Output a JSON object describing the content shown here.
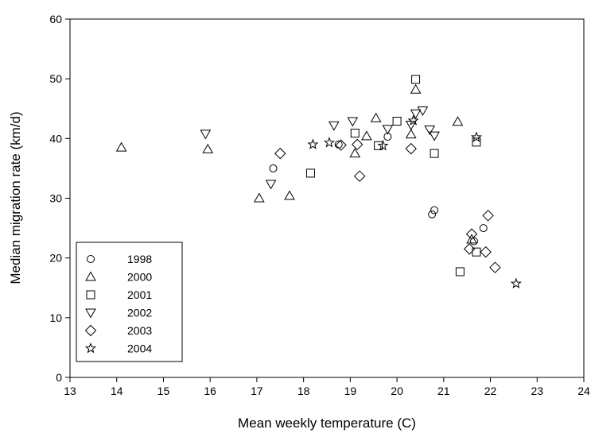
{
  "chart_data": {
    "type": "scatter",
    "title": "",
    "xlabel": "Mean weekly temperature (C)",
    "ylabel": "Median migration rate (km/d)",
    "xlim": [
      13,
      24
    ],
    "ylim": [
      0,
      60
    ],
    "x_ticks": [
      13,
      14,
      15,
      16,
      17,
      18,
      19,
      20,
      21,
      22,
      23,
      24
    ],
    "y_ticks": [
      0,
      10,
      20,
      30,
      40,
      50,
      60
    ],
    "grid": false,
    "legend_position": "bottom-left",
    "series": [
      {
        "name": "1998",
        "marker": "circle",
        "points": [
          [
            17.35,
            35.0
          ],
          [
            18.75,
            39.0
          ],
          [
            19.8,
            40.3
          ],
          [
            20.75,
            27.3
          ],
          [
            20.8,
            28.0
          ],
          [
            21.85,
            25.0
          ],
          [
            21.65,
            22.8
          ]
        ]
      },
      {
        "name": "2000",
        "marker": "triangle-up",
        "points": [
          [
            14.1,
            38.5
          ],
          [
            15.95,
            38.2
          ],
          [
            17.05,
            30.0
          ],
          [
            17.7,
            30.4
          ],
          [
            19.1,
            37.5
          ],
          [
            19.35,
            40.4
          ],
          [
            19.55,
            43.4
          ],
          [
            20.3,
            40.7
          ],
          [
            20.4,
            48.2
          ],
          [
            21.3,
            42.8
          ],
          [
            21.6,
            23.1
          ]
        ]
      },
      {
        "name": "2001",
        "marker": "square",
        "points": [
          [
            18.15,
            34.2
          ],
          [
            19.1,
            40.9
          ],
          [
            19.6,
            38.8
          ],
          [
            20.0,
            42.9
          ],
          [
            20.4,
            49.9
          ],
          [
            20.8,
            37.5
          ],
          [
            21.35,
            17.7
          ],
          [
            21.7,
            21.0
          ],
          [
            21.7,
            39.4
          ]
        ]
      },
      {
        "name": "2002",
        "marker": "triangle-down",
        "points": [
          [
            15.9,
            40.8
          ],
          [
            17.3,
            32.4
          ],
          [
            18.65,
            42.2
          ],
          [
            19.05,
            42.9
          ],
          [
            19.8,
            41.6
          ],
          [
            20.3,
            42.3
          ],
          [
            20.4,
            44.2
          ],
          [
            20.55,
            44.7
          ],
          [
            20.7,
            41.5
          ],
          [
            20.8,
            40.5
          ]
        ]
      },
      {
        "name": "2003",
        "marker": "diamond",
        "points": [
          [
            17.5,
            37.5
          ],
          [
            18.8,
            38.9
          ],
          [
            19.15,
            39.0
          ],
          [
            19.2,
            33.7
          ],
          [
            20.3,
            38.3
          ],
          [
            21.55,
            21.5
          ],
          [
            21.6,
            24.0
          ],
          [
            21.9,
            21.0
          ],
          [
            21.95,
            27.1
          ],
          [
            22.1,
            18.4
          ]
        ]
      },
      {
        "name": "2004",
        "marker": "star",
        "points": [
          [
            18.2,
            39.0
          ],
          [
            18.55,
            39.3
          ],
          [
            19.7,
            38.8
          ],
          [
            20.35,
            43.0
          ],
          [
            21.7,
            40.2
          ],
          [
            22.55,
            15.7
          ]
        ]
      }
    ]
  }
}
